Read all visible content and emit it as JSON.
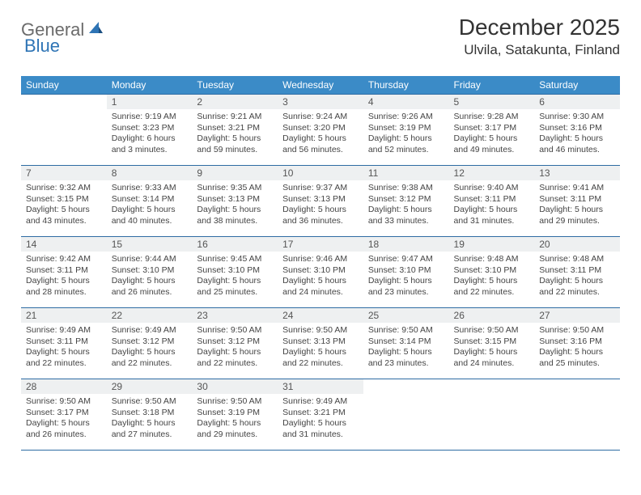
{
  "logo": {
    "part1": "General",
    "part2": "Blue"
  },
  "title": "December 2025",
  "location": "Ulvila, Satakunta, Finland",
  "colors": {
    "header_bg": "#3b8bc7",
    "header_text": "#ffffff",
    "row_border": "#2e6ca3",
    "daynum_bg": "#eef0f1",
    "logo_gray": "#6b6b6b",
    "logo_blue": "#2e74b5"
  },
  "weekdays": [
    "Sunday",
    "Monday",
    "Tuesday",
    "Wednesday",
    "Thursday",
    "Friday",
    "Saturday"
  ],
  "weeks": [
    [
      {
        "num": "",
        "sunrise": "",
        "sunset": "",
        "daylight": ""
      },
      {
        "num": "1",
        "sunrise": "Sunrise: 9:19 AM",
        "sunset": "Sunset: 3:23 PM",
        "daylight": "Daylight: 6 hours and 3 minutes."
      },
      {
        "num": "2",
        "sunrise": "Sunrise: 9:21 AM",
        "sunset": "Sunset: 3:21 PM",
        "daylight": "Daylight: 5 hours and 59 minutes."
      },
      {
        "num": "3",
        "sunrise": "Sunrise: 9:24 AM",
        "sunset": "Sunset: 3:20 PM",
        "daylight": "Daylight: 5 hours and 56 minutes."
      },
      {
        "num": "4",
        "sunrise": "Sunrise: 9:26 AM",
        "sunset": "Sunset: 3:19 PM",
        "daylight": "Daylight: 5 hours and 52 minutes."
      },
      {
        "num": "5",
        "sunrise": "Sunrise: 9:28 AM",
        "sunset": "Sunset: 3:17 PM",
        "daylight": "Daylight: 5 hours and 49 minutes."
      },
      {
        "num": "6",
        "sunrise": "Sunrise: 9:30 AM",
        "sunset": "Sunset: 3:16 PM",
        "daylight": "Daylight: 5 hours and 46 minutes."
      }
    ],
    [
      {
        "num": "7",
        "sunrise": "Sunrise: 9:32 AM",
        "sunset": "Sunset: 3:15 PM",
        "daylight": "Daylight: 5 hours and 43 minutes."
      },
      {
        "num": "8",
        "sunrise": "Sunrise: 9:33 AM",
        "sunset": "Sunset: 3:14 PM",
        "daylight": "Daylight: 5 hours and 40 minutes."
      },
      {
        "num": "9",
        "sunrise": "Sunrise: 9:35 AM",
        "sunset": "Sunset: 3:13 PM",
        "daylight": "Daylight: 5 hours and 38 minutes."
      },
      {
        "num": "10",
        "sunrise": "Sunrise: 9:37 AM",
        "sunset": "Sunset: 3:13 PM",
        "daylight": "Daylight: 5 hours and 36 minutes."
      },
      {
        "num": "11",
        "sunrise": "Sunrise: 9:38 AM",
        "sunset": "Sunset: 3:12 PM",
        "daylight": "Daylight: 5 hours and 33 minutes."
      },
      {
        "num": "12",
        "sunrise": "Sunrise: 9:40 AM",
        "sunset": "Sunset: 3:11 PM",
        "daylight": "Daylight: 5 hours and 31 minutes."
      },
      {
        "num": "13",
        "sunrise": "Sunrise: 9:41 AM",
        "sunset": "Sunset: 3:11 PM",
        "daylight": "Daylight: 5 hours and 29 minutes."
      }
    ],
    [
      {
        "num": "14",
        "sunrise": "Sunrise: 9:42 AM",
        "sunset": "Sunset: 3:11 PM",
        "daylight": "Daylight: 5 hours and 28 minutes."
      },
      {
        "num": "15",
        "sunrise": "Sunrise: 9:44 AM",
        "sunset": "Sunset: 3:10 PM",
        "daylight": "Daylight: 5 hours and 26 minutes."
      },
      {
        "num": "16",
        "sunrise": "Sunrise: 9:45 AM",
        "sunset": "Sunset: 3:10 PM",
        "daylight": "Daylight: 5 hours and 25 minutes."
      },
      {
        "num": "17",
        "sunrise": "Sunrise: 9:46 AM",
        "sunset": "Sunset: 3:10 PM",
        "daylight": "Daylight: 5 hours and 24 minutes."
      },
      {
        "num": "18",
        "sunrise": "Sunrise: 9:47 AM",
        "sunset": "Sunset: 3:10 PM",
        "daylight": "Daylight: 5 hours and 23 minutes."
      },
      {
        "num": "19",
        "sunrise": "Sunrise: 9:48 AM",
        "sunset": "Sunset: 3:10 PM",
        "daylight": "Daylight: 5 hours and 22 minutes."
      },
      {
        "num": "20",
        "sunrise": "Sunrise: 9:48 AM",
        "sunset": "Sunset: 3:11 PM",
        "daylight": "Daylight: 5 hours and 22 minutes."
      }
    ],
    [
      {
        "num": "21",
        "sunrise": "Sunrise: 9:49 AM",
        "sunset": "Sunset: 3:11 PM",
        "daylight": "Daylight: 5 hours and 22 minutes."
      },
      {
        "num": "22",
        "sunrise": "Sunrise: 9:49 AM",
        "sunset": "Sunset: 3:12 PM",
        "daylight": "Daylight: 5 hours and 22 minutes."
      },
      {
        "num": "23",
        "sunrise": "Sunrise: 9:50 AM",
        "sunset": "Sunset: 3:12 PM",
        "daylight": "Daylight: 5 hours and 22 minutes."
      },
      {
        "num": "24",
        "sunrise": "Sunrise: 9:50 AM",
        "sunset": "Sunset: 3:13 PM",
        "daylight": "Daylight: 5 hours and 22 minutes."
      },
      {
        "num": "25",
        "sunrise": "Sunrise: 9:50 AM",
        "sunset": "Sunset: 3:14 PM",
        "daylight": "Daylight: 5 hours and 23 minutes."
      },
      {
        "num": "26",
        "sunrise": "Sunrise: 9:50 AM",
        "sunset": "Sunset: 3:15 PM",
        "daylight": "Daylight: 5 hours and 24 minutes."
      },
      {
        "num": "27",
        "sunrise": "Sunrise: 9:50 AM",
        "sunset": "Sunset: 3:16 PM",
        "daylight": "Daylight: 5 hours and 25 minutes."
      }
    ],
    [
      {
        "num": "28",
        "sunrise": "Sunrise: 9:50 AM",
        "sunset": "Sunset: 3:17 PM",
        "daylight": "Daylight: 5 hours and 26 minutes."
      },
      {
        "num": "29",
        "sunrise": "Sunrise: 9:50 AM",
        "sunset": "Sunset: 3:18 PM",
        "daylight": "Daylight: 5 hours and 27 minutes."
      },
      {
        "num": "30",
        "sunrise": "Sunrise: 9:50 AM",
        "sunset": "Sunset: 3:19 PM",
        "daylight": "Daylight: 5 hours and 29 minutes."
      },
      {
        "num": "31",
        "sunrise": "Sunrise: 9:49 AM",
        "sunset": "Sunset: 3:21 PM",
        "daylight": "Daylight: 5 hours and 31 minutes."
      },
      {
        "num": "",
        "sunrise": "",
        "sunset": "",
        "daylight": ""
      },
      {
        "num": "",
        "sunrise": "",
        "sunset": "",
        "daylight": ""
      },
      {
        "num": "",
        "sunrise": "",
        "sunset": "",
        "daylight": ""
      }
    ]
  ]
}
